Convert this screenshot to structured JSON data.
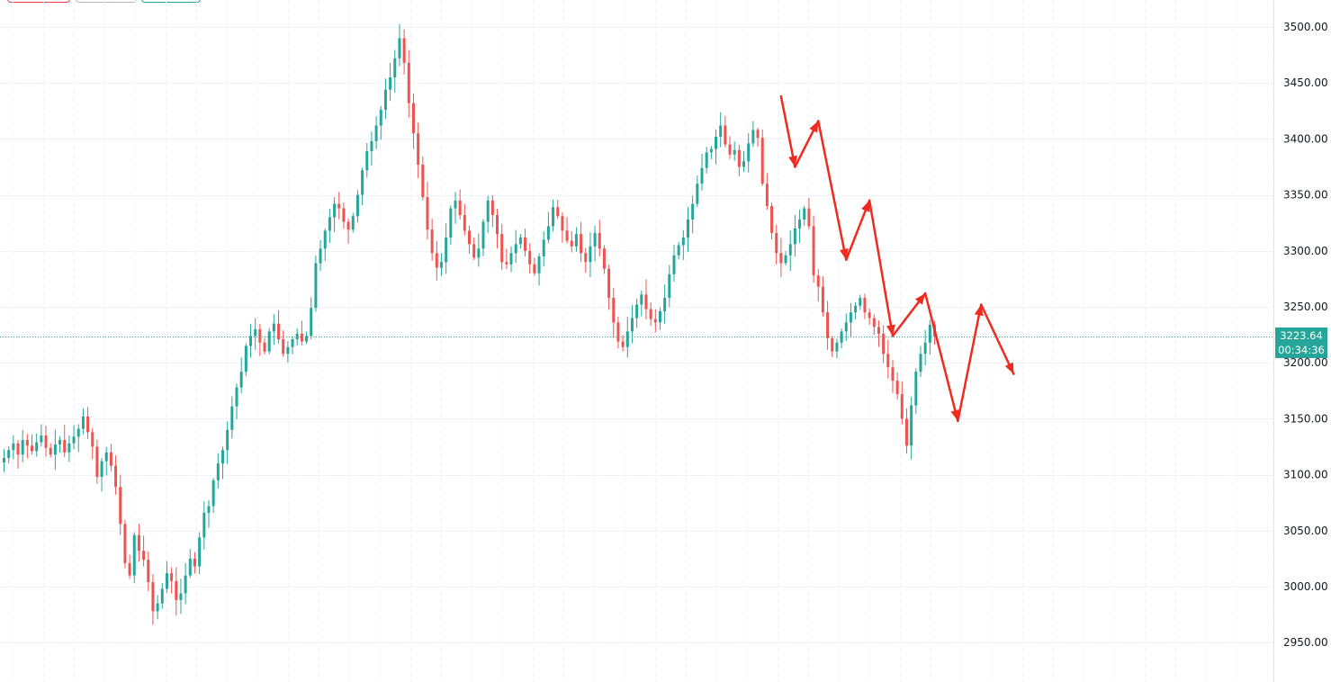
{
  "chart_data": {
    "type": "candlestick",
    "y_axis": {
      "ticks": [
        "3500.00",
        "3450.00",
        "3400.00",
        "3350.00",
        "3300.00",
        "3250.00",
        "3200.00",
        "3150.00",
        "3100.00",
        "3050.00",
        "3000.00",
        "2950.00"
      ],
      "ylim": [
        2920,
        3525
      ],
      "side": "right"
    },
    "grid": true,
    "current_price": "3223.64",
    "countdown": "00:34:36",
    "colors": {
      "up": "#26a69a",
      "down": "#ef5350",
      "arrow": "#ef2a1f",
      "grid": "#f0f3fa",
      "price_line": "#26a69a"
    },
    "close_path": [
      3115,
      3122,
      3128,
      3118,
      3131,
      3126,
      3121,
      3129,
      3135,
      3124,
      3118,
      3127,
      3131,
      3120,
      3128,
      3134,
      3141,
      3152,
      3138,
      3125,
      3098,
      3112,
      3120,
      3108,
      3089,
      3056,
      3021,
      3010,
      3046,
      3032,
      3024,
      3004,
      2978,
      2985,
      2998,
      3012,
      3005,
      2988,
      2994,
      3010,
      3025,
      3018,
      3044,
      3066,
      3072,
      3095,
      3110,
      3122,
      3140,
      3161,
      3178,
      3192,
      3215,
      3224,
      3230,
      3218,
      3210,
      3228,
      3235,
      3221,
      3208,
      3214,
      3221,
      3226,
      3219,
      3224,
      3249,
      3289,
      3302,
      3318,
      3330,
      3342,
      3338,
      3326,
      3319,
      3331,
      3350,
      3372,
      3389,
      3398,
      3412,
      3426,
      3444,
      3455,
      3472,
      3490,
      3468,
      3432,
      3405,
      3377,
      3348,
      3319,
      3298,
      3285,
      3290,
      3312,
      3338,
      3345,
      3332,
      3318,
      3306,
      3294,
      3302,
      3326,
      3345,
      3332,
      3315,
      3290,
      3288,
      3298,
      3306,
      3312,
      3300,
      3288,
      3280,
      3295,
      3310,
      3322,
      3339,
      3331,
      3318,
      3309,
      3304,
      3315,
      3298,
      3290,
      3304,
      3316,
      3302,
      3284,
      3258,
      3236,
      3219,
      3214,
      3228,
      3240,
      3252,
      3261,
      3248,
      3239,
      3236,
      3246,
      3258,
      3279,
      3296,
      3305,
      3312,
      3328,
      3342,
      3360,
      3374,
      3388,
      3391,
      3402,
      3412,
      3395,
      3386,
      3390,
      3375,
      3380,
      3396,
      3408,
      3401,
      3360,
      3340,
      3316,
      3298,
      3289,
      3296,
      3306,
      3320,
      3328,
      3338,
      3322,
      3278,
      3268,
      3245,
      3222,
      3210,
      3218,
      3228,
      3236,
      3245,
      3251,
      3258,
      3245,
      3240,
      3232,
      3226,
      3208,
      3196,
      3184,
      3172,
      3150,
      3126,
      3162,
      3192,
      3208,
      3218,
      3234,
      3223.64
    ],
    "arrows": [
      {
        "from": [
          167,
          3438
        ],
        "to": [
          170,
          3375
        ]
      },
      {
        "from": [
          170,
          3375
        ],
        "to": [
          175,
          3416
        ]
      },
      {
        "from": [
          175,
          3416
        ],
        "to": [
          181,
          3292
        ]
      },
      {
        "from": [
          181,
          3292
        ],
        "to": [
          186,
          3345
        ]
      },
      {
        "from": [
          186,
          3345
        ],
        "to": [
          191,
          3224
        ]
      },
      {
        "from": [
          191,
          3224
        ],
        "to": [
          198,
          3262
        ]
      },
      {
        "from": [
          198,
          3262
        ],
        "to": [
          205,
          3148
        ]
      },
      {
        "from": [
          205,
          3148
        ],
        "to": [
          210,
          3252
        ]
      },
      {
        "from": [
          210,
          3252
        ],
        "to": [
          217,
          3190
        ]
      }
    ]
  }
}
